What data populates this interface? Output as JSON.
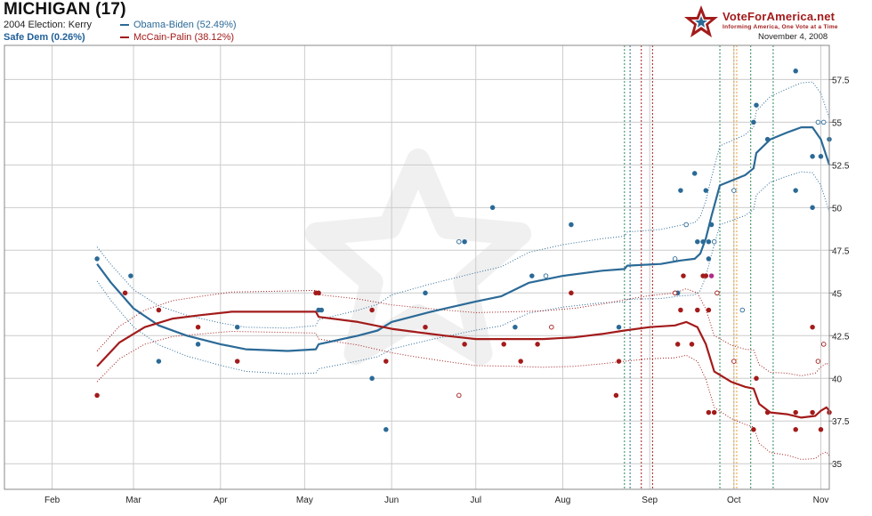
{
  "header": {
    "title": "MICHIGAN (17)",
    "previous_election": "2004 Election: Kerry",
    "rating": "Safe Dem (0.26%)",
    "date": "November 4, 2008",
    "logo_text": "VoteForAmerica.net",
    "logo_tagline": "Informing America, One Vote at a Time"
  },
  "colors": {
    "dem": "#2b6a97",
    "rep": "#a31b1b",
    "grid": "#cccccc"
  },
  "chart_data": {
    "type": "line",
    "x_axis": {
      "type": "date",
      "range": [
        "2008-01-15",
        "2008-11-04"
      ],
      "tick_labels": [
        {
          "label": "Feb",
          "date": "2008-02-01"
        },
        {
          "label": "Mar",
          "date": "2008-03-01"
        },
        {
          "label": "Apr",
          "date": "2008-04-01"
        },
        {
          "label": "May",
          "date": "2008-05-01"
        },
        {
          "label": "Jun",
          "date": "2008-06-01"
        },
        {
          "label": "Jul",
          "date": "2008-07-01"
        },
        {
          "label": "Aug",
          "date": "2008-08-01"
        },
        {
          "label": "Sep",
          "date": "2008-09-01"
        },
        {
          "label": "Oct",
          "date": "2008-10-01"
        },
        {
          "label": "Nov",
          "date": "2008-11-01"
        }
      ]
    },
    "y_axis": {
      "range": [
        33.5,
        59.5
      ],
      "ticks": [
        35,
        37.5,
        40,
        42.5,
        45,
        47.5,
        50,
        52.5,
        55,
        57.5
      ],
      "tick_labels": [
        "35",
        "37.5",
        "40",
        "42.5",
        "45",
        "47.5",
        "50",
        "52.5",
        "55",
        "57.5"
      ],
      "position": "right"
    },
    "grid": true,
    "legend_position": "top-left",
    "event_lines": [
      {
        "date": "2008-08-23",
        "color": "#2a8a5a"
      },
      {
        "date": "2008-08-25",
        "color": "#2b6a97"
      },
      {
        "date": "2008-08-29",
        "color": "#a31b1b"
      },
      {
        "date": "2008-09-02",
        "color": "#a31b1b"
      },
      {
        "date": "2008-09-26",
        "color": "#2a8a5a"
      },
      {
        "date": "2008-10-01",
        "color": "#e0a040"
      },
      {
        "date": "2008-10-02",
        "color": "#e0a040"
      },
      {
        "date": "2008-10-07",
        "color": "#2a8a5a"
      },
      {
        "date": "2008-10-15",
        "color": "#2a8a5a"
      }
    ],
    "series": [
      {
        "name": "Obama-Biden (52.49%)",
        "color": "#2b6a97",
        "trend": [
          [
            "2008-02-17",
            46.7
          ],
          [
            "2008-02-22",
            45.6
          ],
          [
            "2008-03-01",
            44.1
          ],
          [
            "2008-03-10",
            43.1
          ],
          [
            "2008-03-20",
            42.5
          ],
          [
            "2008-04-01",
            42.0
          ],
          [
            "2008-04-10",
            41.7
          ],
          [
            "2008-04-25",
            41.6
          ],
          [
            "2008-05-05",
            41.7
          ],
          [
            "2008-05-06",
            42.0
          ],
          [
            "2008-05-20",
            42.5
          ],
          [
            "2008-05-27",
            42.8
          ],
          [
            "2008-06-01",
            43.3
          ],
          [
            "2008-06-15",
            43.9
          ],
          [
            "2008-07-01",
            44.5
          ],
          [
            "2008-07-10",
            44.8
          ],
          [
            "2008-07-20",
            45.6
          ],
          [
            "2008-08-01",
            46.0
          ],
          [
            "2008-08-15",
            46.3
          ],
          [
            "2008-08-23",
            46.4
          ],
          [
            "2008-08-24",
            46.6
          ],
          [
            "2008-09-05",
            46.7
          ],
          [
            "2008-09-12",
            46.9
          ],
          [
            "2008-09-17",
            47.0
          ],
          [
            "2008-09-19",
            47.3
          ],
          [
            "2008-09-21",
            48.2
          ],
          [
            "2008-09-23",
            49.5
          ],
          [
            "2008-09-26",
            51.3
          ],
          [
            "2008-10-05",
            51.9
          ],
          [
            "2008-10-08",
            52.3
          ],
          [
            "2008-10-09",
            53.2
          ],
          [
            "2008-10-14",
            54.0
          ],
          [
            "2008-10-20",
            54.4
          ],
          [
            "2008-10-25",
            54.7
          ],
          [
            "2008-10-29",
            54.7
          ],
          [
            "2008-11-01",
            54.0
          ],
          [
            "2008-11-04",
            52.5
          ]
        ],
        "points": [
          {
            "date": "2008-02-17",
            "value": 47.0,
            "filled": true
          },
          {
            "date": "2008-02-29",
            "value": 46.0,
            "filled": true
          },
          {
            "date": "2008-03-10",
            "value": 41.0,
            "filled": true
          },
          {
            "date": "2008-03-24",
            "value": 42.0,
            "filled": true
          },
          {
            "date": "2008-04-07",
            "value": 43.0,
            "filled": true
          },
          {
            "date": "2008-05-06",
            "value": 44.0,
            "filled": true
          },
          {
            "date": "2008-05-07",
            "value": 44.0,
            "filled": true
          },
          {
            "date": "2008-05-25",
            "value": 40.0,
            "filled": true
          },
          {
            "date": "2008-05-30",
            "value": 37.0,
            "filled": true
          },
          {
            "date": "2008-06-13",
            "value": 45.0,
            "filled": true
          },
          {
            "date": "2008-06-25",
            "value": 48.0,
            "filled": false
          },
          {
            "date": "2008-06-27",
            "value": 48.0,
            "filled": true
          },
          {
            "date": "2008-07-07",
            "value": 50.0,
            "filled": true
          },
          {
            "date": "2008-07-15",
            "value": 43.0,
            "filled": true
          },
          {
            "date": "2008-07-21",
            "value": 46.0,
            "filled": true
          },
          {
            "date": "2008-07-26",
            "value": 46.0,
            "filled": false
          },
          {
            "date": "2008-08-04",
            "value": 49.0,
            "filled": true
          },
          {
            "date": "2008-08-21",
            "value": 43.0,
            "filled": true
          },
          {
            "date": "2008-09-10",
            "value": 47.0,
            "filled": false
          },
          {
            "date": "2008-09-11",
            "value": 45.0,
            "filled": true
          },
          {
            "date": "2008-09-12",
            "value": 51.0,
            "filled": true
          },
          {
            "date": "2008-09-14",
            "value": 49.0,
            "filled": false
          },
          {
            "date": "2008-09-17",
            "value": 52.0,
            "filled": true
          },
          {
            "date": "2008-09-18",
            "value": 48.0,
            "filled": true
          },
          {
            "date": "2008-09-20",
            "value": 48.0,
            "filled": true
          },
          {
            "date": "2008-09-21",
            "value": 51.0,
            "filled": true
          },
          {
            "date": "2008-09-22",
            "value": 48.0,
            "filled": true
          },
          {
            "date": "2008-09-22",
            "value": 47.0,
            "filled": true
          },
          {
            "date": "2008-09-23",
            "value": 49.0,
            "filled": true
          },
          {
            "date": "2008-09-24",
            "value": 48.0,
            "filled": false
          },
          {
            "date": "2008-10-01",
            "value": 51.0,
            "filled": false
          },
          {
            "date": "2008-10-04",
            "value": 44.0,
            "filled": false
          },
          {
            "date": "2008-10-08",
            "value": 55.0,
            "filled": true
          },
          {
            "date": "2008-10-09",
            "value": 56.0,
            "filled": true
          },
          {
            "date": "2008-10-13",
            "value": 54.0,
            "filled": true
          },
          {
            "date": "2008-10-23",
            "value": 58.0,
            "filled": true
          },
          {
            "date": "2008-10-23",
            "value": 51.0,
            "filled": true
          },
          {
            "date": "2008-10-29",
            "value": 50.0,
            "filled": true
          },
          {
            "date": "2008-10-29",
            "value": 53.0,
            "filled": true
          },
          {
            "date": "2008-10-31",
            "value": 55.0,
            "filled": false
          },
          {
            "date": "2008-11-01",
            "value": 53.0,
            "filled": true
          },
          {
            "date": "2008-11-02",
            "value": 55.0,
            "filled": false
          },
          {
            "date": "2008-11-04",
            "value": 54.0,
            "filled": true
          }
        ]
      },
      {
        "name": "McCain-Palin (38.12%)",
        "color": "#a31b1b",
        "trend": [
          [
            "2008-02-17",
            40.7
          ],
          [
            "2008-02-25",
            42.1
          ],
          [
            "2008-03-05",
            43.0
          ],
          [
            "2008-03-15",
            43.5
          ],
          [
            "2008-03-25",
            43.7
          ],
          [
            "2008-04-05",
            43.9
          ],
          [
            "2008-04-20",
            43.9
          ],
          [
            "2008-05-05",
            43.9
          ],
          [
            "2008-05-06",
            43.6
          ],
          [
            "2008-05-20",
            43.3
          ],
          [
            "2008-06-01",
            42.9
          ],
          [
            "2008-06-10",
            42.7
          ],
          [
            "2008-06-20",
            42.5
          ],
          [
            "2008-07-01",
            42.3
          ],
          [
            "2008-07-15",
            42.3
          ],
          [
            "2008-07-25",
            42.3
          ],
          [
            "2008-08-05",
            42.4
          ],
          [
            "2008-08-15",
            42.6
          ],
          [
            "2008-08-23",
            42.8
          ],
          [
            "2008-09-01",
            43.0
          ],
          [
            "2008-09-10",
            43.1
          ],
          [
            "2008-09-14",
            43.3
          ],
          [
            "2008-09-18",
            43.0
          ],
          [
            "2008-09-21",
            42.0
          ],
          [
            "2008-09-24",
            40.4
          ],
          [
            "2008-09-30",
            39.8
          ],
          [
            "2008-10-05",
            39.5
          ],
          [
            "2008-10-08",
            39.4
          ],
          [
            "2008-10-10",
            38.5
          ],
          [
            "2008-10-14",
            38.0
          ],
          [
            "2008-10-20",
            37.9
          ],
          [
            "2008-10-25",
            37.7
          ],
          [
            "2008-10-30",
            37.8
          ],
          [
            "2008-11-01",
            38.1
          ],
          [
            "2008-11-03",
            38.3
          ],
          [
            "2008-11-04",
            38.1
          ]
        ],
        "points": [
          {
            "date": "2008-02-17",
            "value": 39.0,
            "filled": true
          },
          {
            "date": "2008-02-27",
            "value": 45.0,
            "filled": true
          },
          {
            "date": "2008-03-10",
            "value": 44.0,
            "filled": true
          },
          {
            "date": "2008-03-24",
            "value": 43.0,
            "filled": true
          },
          {
            "date": "2008-04-07",
            "value": 41.0,
            "filled": true
          },
          {
            "date": "2008-05-05",
            "value": 45.0,
            "filled": true
          },
          {
            "date": "2008-05-06",
            "value": 45.0,
            "filled": true
          },
          {
            "date": "2008-05-25",
            "value": 44.0,
            "filled": true
          },
          {
            "date": "2008-05-30",
            "value": 41.0,
            "filled": true
          },
          {
            "date": "2008-06-13",
            "value": 43.0,
            "filled": true
          },
          {
            "date": "2008-06-25",
            "value": 39.0,
            "filled": false
          },
          {
            "date": "2008-06-27",
            "value": 42.0,
            "filled": true
          },
          {
            "date": "2008-07-11",
            "value": 42.0,
            "filled": true
          },
          {
            "date": "2008-07-17",
            "value": 41.0,
            "filled": true
          },
          {
            "date": "2008-07-23",
            "value": 42.0,
            "filled": true
          },
          {
            "date": "2008-07-28",
            "value": 43.0,
            "filled": false
          },
          {
            "date": "2008-08-04",
            "value": 45.0,
            "filled": true
          },
          {
            "date": "2008-08-20",
            "value": 39.0,
            "filled": true
          },
          {
            "date": "2008-08-21",
            "value": 41.0,
            "filled": true
          },
          {
            "date": "2008-09-10",
            "value": 45.0,
            "filled": false
          },
          {
            "date": "2008-09-11",
            "value": 42.0,
            "filled": true
          },
          {
            "date": "2008-09-12",
            "value": 44.0,
            "filled": true
          },
          {
            "date": "2008-09-13",
            "value": 46.0,
            "filled": true
          },
          {
            "date": "2008-09-16",
            "value": 42.0,
            "filled": true
          },
          {
            "date": "2008-09-18",
            "value": 44.0,
            "filled": true
          },
          {
            "date": "2008-09-20",
            "value": 46.0,
            "filled": true
          },
          {
            "date": "2008-09-21",
            "value": 46.0,
            "filled": true
          },
          {
            "date": "2008-09-22",
            "value": 38.0,
            "filled": true
          },
          {
            "date": "2008-09-22",
            "value": 44.0,
            "filled": true
          },
          {
            "date": "2008-09-24",
            "value": 38.0,
            "filled": true
          },
          {
            "date": "2008-09-25",
            "value": 45.0,
            "filled": false
          },
          {
            "date": "2008-10-01",
            "value": 41.0,
            "filled": false
          },
          {
            "date": "2008-10-08",
            "value": 37.0,
            "filled": true
          },
          {
            "date": "2008-10-09",
            "value": 40.0,
            "filled": true
          },
          {
            "date": "2008-10-13",
            "value": 38.0,
            "filled": true
          },
          {
            "date": "2008-10-23",
            "value": 37.0,
            "filled": true
          },
          {
            "date": "2008-10-23",
            "value": 38.0,
            "filled": true
          },
          {
            "date": "2008-10-29",
            "value": 43.0,
            "filled": true
          },
          {
            "date": "2008-10-29",
            "value": 38.0,
            "filled": true
          },
          {
            "date": "2008-10-31",
            "value": 41.0,
            "filled": false
          },
          {
            "date": "2008-11-01",
            "value": 37.0,
            "filled": true
          },
          {
            "date": "2008-11-02",
            "value": 42.0,
            "filled": false
          },
          {
            "date": "2008-11-04",
            "value": 38.0,
            "filled": true
          }
        ]
      }
    ],
    "extra_points": [
      {
        "date": "2008-09-23",
        "value": 46.0,
        "color": "#b02a8a",
        "filled": true
      }
    ]
  }
}
